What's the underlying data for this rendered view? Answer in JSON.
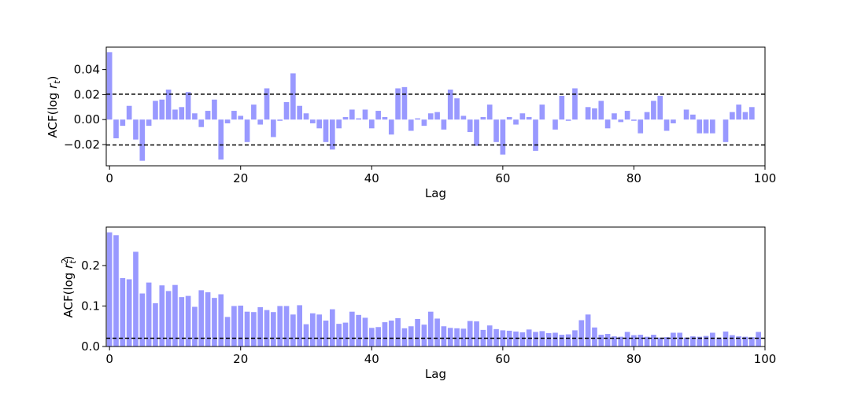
{
  "chart_data": [
    {
      "type": "bar",
      "xlabel": "Lag",
      "ylabel_main": "ACF(log ",
      "ylabel_var": "r",
      "ylabel_sub": "t",
      "ylabel_sup": "",
      "ylabel_end": ")",
      "xlim": [
        -0.5,
        100
      ],
      "ylim": [
        -0.037,
        0.058
      ],
      "xticks": [
        0,
        20,
        40,
        60,
        80,
        100
      ],
      "yticks": [
        -0.02,
        0.0,
        0.02,
        0.04
      ],
      "ytick_labels": [
        "−0.02",
        "0.00",
        "0.02",
        "0.04"
      ],
      "bar_color": "#9999ff",
      "reference_lines": [
        0.0203,
        -0.0203
      ],
      "x": [
        0,
        1,
        2,
        3,
        4,
        5,
        6,
        7,
        8,
        9,
        10,
        11,
        12,
        13,
        14,
        15,
        16,
        17,
        18,
        19,
        20,
        21,
        22,
        23,
        24,
        25,
        26,
        27,
        28,
        29,
        30,
        31,
        32,
        33,
        34,
        35,
        36,
        37,
        38,
        39,
        40,
        41,
        42,
        43,
        44,
        45,
        46,
        47,
        48,
        49,
        50,
        51,
        52,
        53,
        54,
        55,
        56,
        57,
        58,
        59,
        60,
        61,
        62,
        63,
        64,
        65,
        66,
        67,
        68,
        69,
        70,
        71,
        72,
        73,
        74,
        75,
        76,
        77,
        78,
        79,
        80,
        81,
        82,
        83,
        84,
        85,
        86,
        87,
        88,
        89,
        90,
        91,
        92,
        93,
        94,
        95,
        96,
        97,
        98,
        99
      ],
      "values": [
        0.054,
        -0.015,
        -0.005,
        0.011,
        -0.016,
        -0.033,
        -0.005,
        0.015,
        0.016,
        0.024,
        0.008,
        0.01,
        0.022,
        0.005,
        -0.006,
        0.007,
        0.016,
        -0.032,
        -0.003,
        0.007,
        0.003,
        -0.018,
        0.012,
        -0.004,
        0.025,
        -0.014,
        -0.001,
        0.014,
        0.037,
        0.011,
        0.005,
        -0.003,
        -0.007,
        -0.018,
        -0.024,
        -0.007,
        0.002,
        0.008,
        0.001,
        0.008,
        -0.007,
        0.007,
        0.002,
        -0.012,
        0.025,
        0.026,
        -0.009,
        0.001,
        -0.005,
        0.005,
        0.006,
        -0.008,
        0.024,
        0.017,
        0.003,
        -0.01,
        -0.021,
        0.002,
        0.012,
        -0.018,
        -0.028,
        0.002,
        -0.004,
        0.005,
        0.002,
        -0.025,
        0.012,
        0.0,
        -0.008,
        0.019,
        -0.001,
        0.025,
        0.0,
        0.01,
        0.009,
        0.015,
        -0.007,
        0.005,
        -0.002,
        0.007,
        -0.001,
        -0.011,
        0.006,
        0.015,
        0.019,
        -0.009,
        -0.003,
        0.0,
        0.008,
        0.004,
        -0.011,
        -0.011,
        -0.011,
        0.0,
        -0.018,
        0.006,
        0.012,
        0.006,
        0.01,
        0.0
      ]
    },
    {
      "type": "bar",
      "xlabel": "Lag",
      "ylabel_main": "ACF(log ",
      "ylabel_var": "r",
      "ylabel_sub": "t",
      "ylabel_sup": "2",
      "ylabel_end": ")",
      "xlim": [
        -0.5,
        100
      ],
      "ylim": [
        0,
        0.295
      ],
      "xticks": [
        0,
        20,
        40,
        60,
        80,
        100
      ],
      "yticks": [
        0.0,
        0.1,
        0.2
      ],
      "ytick_labels": [
        "0.0",
        "0.1",
        "0.2"
      ],
      "bar_color": "#9999ff",
      "reference_lines": [
        0.0203
      ],
      "x": [
        0,
        1,
        2,
        3,
        4,
        5,
        6,
        7,
        8,
        9,
        10,
        11,
        12,
        13,
        14,
        15,
        16,
        17,
        18,
        19,
        20,
        21,
        22,
        23,
        24,
        25,
        26,
        27,
        28,
        29,
        30,
        31,
        32,
        33,
        34,
        35,
        36,
        37,
        38,
        39,
        40,
        41,
        42,
        43,
        44,
        45,
        46,
        47,
        48,
        49,
        50,
        51,
        52,
        53,
        54,
        55,
        56,
        57,
        58,
        59,
        60,
        61,
        62,
        63,
        64,
        65,
        66,
        67,
        68,
        69,
        70,
        71,
        72,
        73,
        74,
        75,
        76,
        77,
        78,
        79,
        80,
        81,
        82,
        83,
        84,
        85,
        86,
        87,
        88,
        89,
        90,
        91,
        92,
        93,
        94,
        95,
        96,
        97,
        98,
        99
      ],
      "values": [
        0.282,
        0.275,
        0.169,
        0.166,
        0.234,
        0.131,
        0.158,
        0.107,
        0.151,
        0.137,
        0.152,
        0.122,
        0.125,
        0.098,
        0.139,
        0.134,
        0.12,
        0.129,
        0.073,
        0.1,
        0.101,
        0.086,
        0.085,
        0.097,
        0.09,
        0.085,
        0.1,
        0.1,
        0.079,
        0.102,
        0.055,
        0.082,
        0.079,
        0.064,
        0.092,
        0.056,
        0.059,
        0.086,
        0.078,
        0.071,
        0.046,
        0.048,
        0.06,
        0.064,
        0.07,
        0.045,
        0.05,
        0.068,
        0.054,
        0.086,
        0.069,
        0.05,
        0.046,
        0.045,
        0.044,
        0.063,
        0.062,
        0.041,
        0.052,
        0.043,
        0.04,
        0.039,
        0.037,
        0.035,
        0.042,
        0.036,
        0.038,
        0.033,
        0.034,
        0.029,
        0.03,
        0.04,
        0.065,
        0.079,
        0.047,
        0.029,
        0.031,
        0.025,
        0.024,
        0.036,
        0.028,
        0.029,
        0.024,
        0.029,
        0.022,
        0.023,
        0.034,
        0.034,
        0.022,
        0.025,
        0.024,
        0.026,
        0.034,
        0.022,
        0.037,
        0.028,
        0.025,
        0.024,
        0.023,
        0.036
      ]
    }
  ]
}
